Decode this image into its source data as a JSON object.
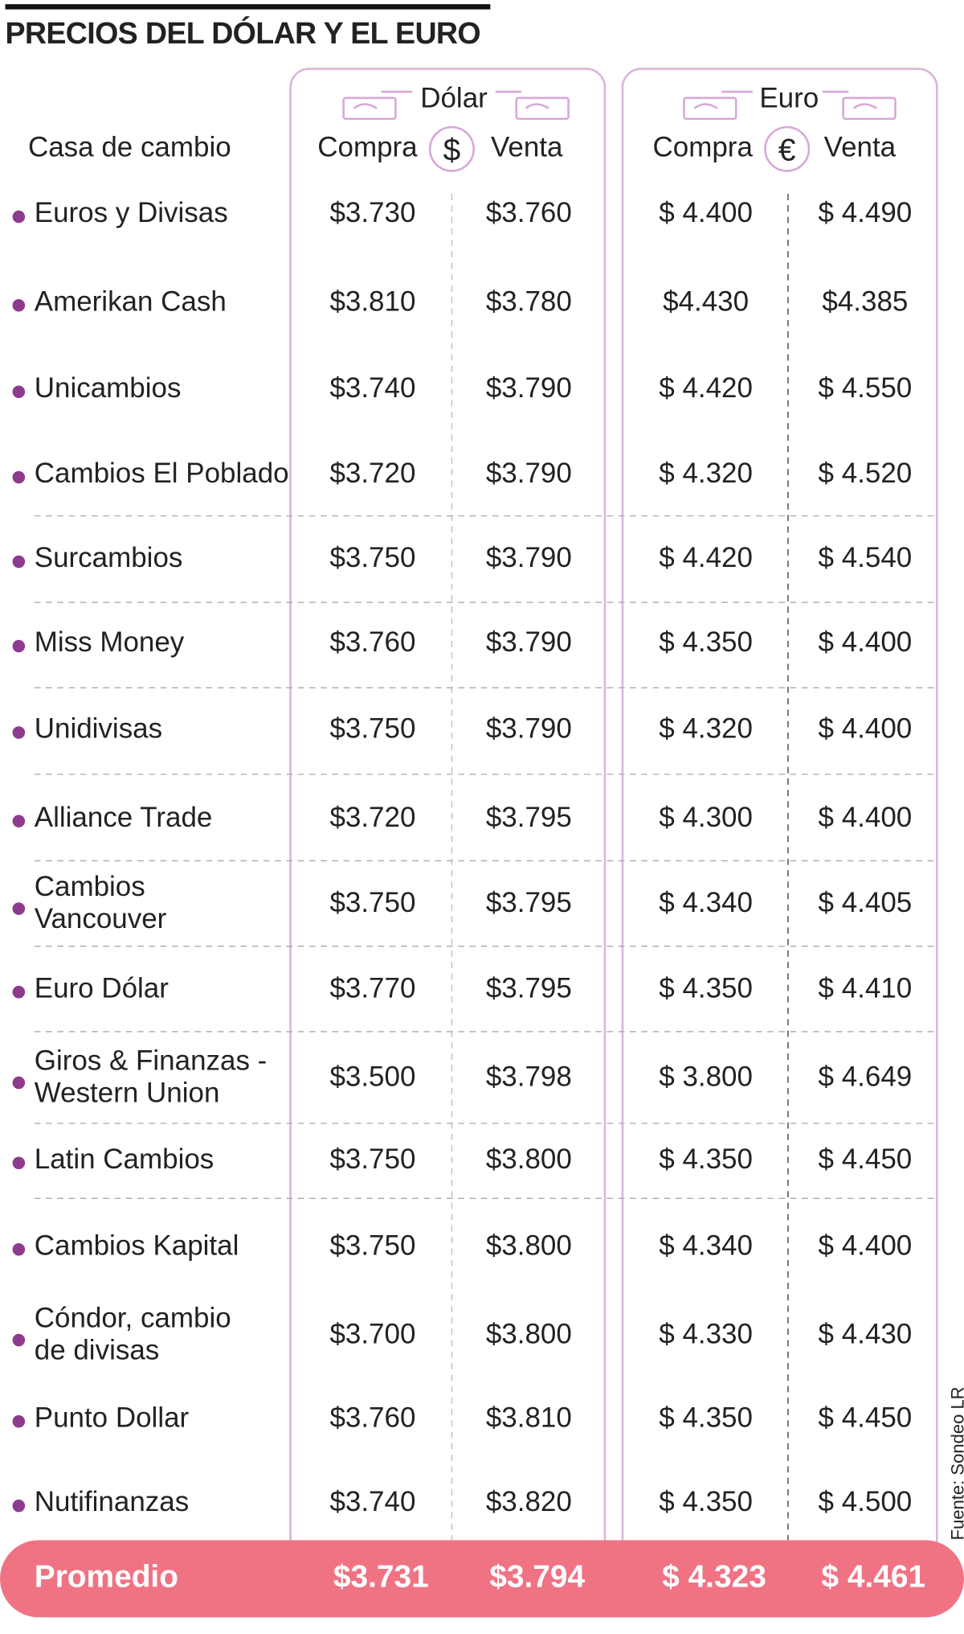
{
  "header": {
    "title": "PRECIOS DEL DÓLAR Y EL EURO",
    "row_label": "Casa de cambio",
    "dollar": "Dólar",
    "euro": "Euro",
    "dollar_icon": "$",
    "euro_icon": "€",
    "buy": "Compra",
    "sell": "Venta"
  },
  "table": {
    "rows": [
      {
        "name": [
          "Euros y Divisas"
        ],
        "cells": [
          "$3.730",
          "$3.760",
          "$ 4.400",
          "$ 4.490"
        ]
      },
      {
        "name": [
          "Amerikan Cash"
        ],
        "cells": [
          "$3.810",
          "$3.780",
          "$4.430",
          "$4.385"
        ]
      },
      {
        "name": [
          "Unicambios"
        ],
        "cells": [
          "$3.740",
          "$3.790",
          "$ 4.420",
          "$ 4.550"
        ]
      },
      {
        "name": [
          "Cambios El Poblado"
        ],
        "cells": [
          "$3.720",
          "$3.790",
          "$ 4.320",
          "$ 4.520"
        ]
      },
      {
        "name": [
          "Surcambios"
        ],
        "cells": [
          "$3.750",
          "$3.790",
          "$ 4.420",
          "$ 4.540"
        ]
      },
      {
        "name": [
          "Miss Money"
        ],
        "cells": [
          "$3.760",
          "$3.790",
          "$ 4.350",
          "$ 4.400"
        ]
      },
      {
        "name": [
          "Unidivisas"
        ],
        "cells": [
          "$3.750",
          "$3.790",
          "$ 4.320",
          "$ 4.400"
        ]
      },
      {
        "name": [
          "Alliance Trade"
        ],
        "cells": [
          "$3.720",
          "$3.795",
          "$ 4.300",
          "$ 4.400"
        ]
      },
      {
        "name": [
          "Cambios",
          "Vancouver"
        ],
        "cells": [
          "$3.750",
          "$3.795",
          "$ 4.340",
          "$ 4.405"
        ]
      },
      {
        "name": [
          "Euro Dólar"
        ],
        "cells": [
          "$3.770",
          "$3.795",
          "$ 4.350",
          "$ 4.410"
        ]
      },
      {
        "name": [
          "Giros & Finanzas -",
          "Western Union"
        ],
        "cells": [
          "$3.500",
          "$3.798",
          "$ 3.800",
          "$ 4.649"
        ]
      },
      {
        "name": [
          "Latin Cambios"
        ],
        "cells": [
          "$3.750",
          "$3.800",
          "$ 4.350",
          "$ 4.450"
        ]
      },
      {
        "name": [
          "Cambios Kapital"
        ],
        "cells": [
          "$3.750",
          "$3.800",
          "$ 4.340",
          "$ 4.400"
        ]
      },
      {
        "name": [
          "Cóndor, cambio",
          "de divisas"
        ],
        "cells": [
          "$3.700",
          "$3.800",
          "$ 4.330",
          "$ 4.430"
        ]
      },
      {
        "name": [
          "Punto Dollar"
        ],
        "cells": [
          "$3.760",
          "$3.810",
          "$ 4.350",
          "$ 4.450"
        ]
      },
      {
        "name": [
          "Nutifinanzas"
        ],
        "cells": [
          "$3.740",
          "$3.820",
          "$ 4.350",
          "$ 4.500"
        ]
      }
    ],
    "average": {
      "label": "Promedio",
      "cells": [
        "$3.731",
        "$3.794",
        "$ 4.323",
        "$ 4.461"
      ]
    }
  },
  "source": "Fuente: Sondeo LR"
}
